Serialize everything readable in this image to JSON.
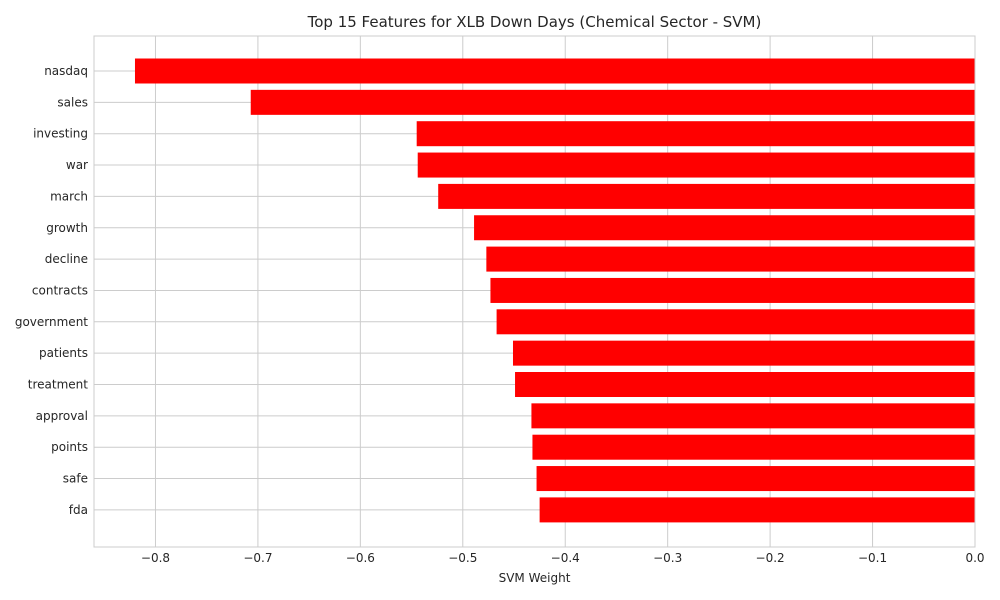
{
  "chart_data": {
    "type": "bar",
    "orientation": "horizontal",
    "title": "Top 15 Features for XLB Down Days (Chemical Sector - SVM)",
    "xlabel": "SVM Weight",
    "ylabel": "",
    "xlim": [
      -0.86,
      0.0
    ],
    "xticks": [
      -0.8,
      -0.7,
      -0.6,
      -0.5,
      -0.4,
      -0.3,
      -0.2,
      -0.1,
      0.0
    ],
    "xtick_labels": [
      "−0.8",
      "−0.7",
      "−0.6",
      "−0.5",
      "−0.4",
      "−0.3",
      "−0.2",
      "−0.1",
      "0.0"
    ],
    "categories": [
      "nasdaq",
      "sales",
      "investing",
      "war",
      "march",
      "growth",
      "decline",
      "contracts",
      "government",
      "patients",
      "treatment",
      "approval",
      "points",
      "safe",
      "fda"
    ],
    "values": [
      -0.82,
      -0.707,
      -0.545,
      -0.544,
      -0.524,
      -0.489,
      -0.477,
      -0.473,
      -0.467,
      -0.451,
      -0.449,
      -0.433,
      -0.432,
      -0.428,
      -0.425
    ],
    "bar_color": "#ff0000",
    "grid": true
  }
}
